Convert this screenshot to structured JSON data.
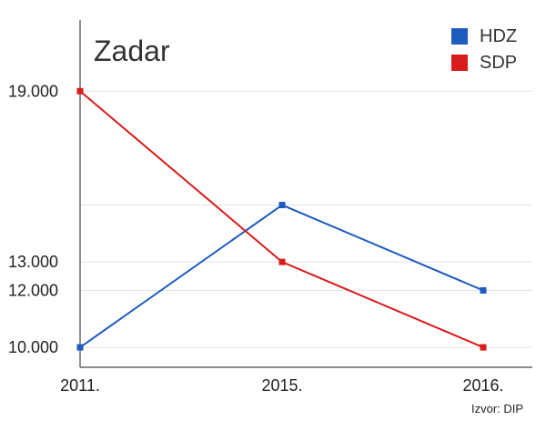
{
  "chart_data": {
    "type": "line",
    "title": "Zadar",
    "categories": [
      "2011.",
      "2015.",
      "2016."
    ],
    "x": [
      "2011.",
      "2015.",
      "2016."
    ],
    "series": [
      {
        "name": "HDZ",
        "values": [
          10000,
          15000,
          12000
        ],
        "color": "#1e5bbf"
      },
      {
        "name": "SDP",
        "values": [
          19000,
          13000,
          10000
        ],
        "color": "#d81b1b"
      }
    ],
    "ylim": [
      9300,
      21500
    ],
    "ytick_labels": [
      {
        "value": 19000,
        "label": "19.000"
      },
      {
        "value": 13000,
        "label": "13.000"
      },
      {
        "value": 12000,
        "label": "12.000"
      },
      {
        "value": 10000,
        "label": "10.000"
      }
    ],
    "grid_lines": [
      10000,
      12000,
      13000,
      15000,
      19000
    ],
    "xlabel": "",
    "ylabel": "",
    "grid": true,
    "legend": {
      "position": "top-right",
      "items": [
        "HDZ",
        "SDP"
      ]
    },
    "source": "Izvor: DIP"
  }
}
